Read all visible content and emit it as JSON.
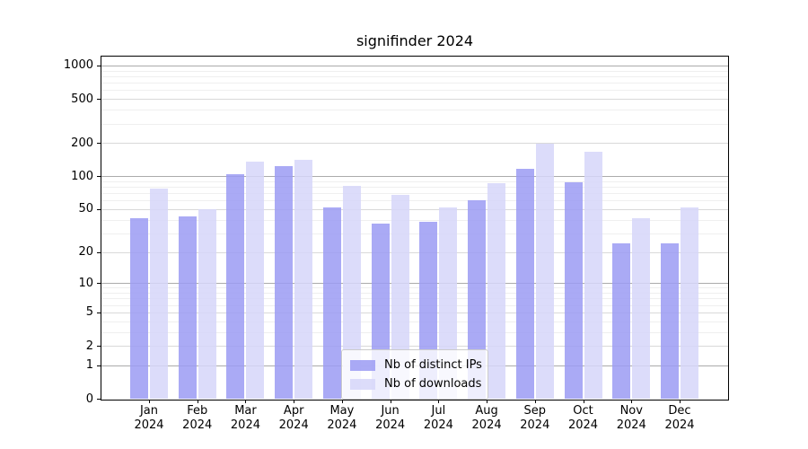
{
  "title": "signifinder 2024",
  "chart_data": {
    "type": "bar",
    "title": "signifinder 2024",
    "categories": [
      "Jan 2024",
      "Feb 2024",
      "Mar 2024",
      "Apr 2024",
      "May 2024",
      "Jun 2024",
      "Jul 2024",
      "Aug 2024",
      "Sep 2024",
      "Oct 2024",
      "Nov 2024",
      "Dec 2024"
    ],
    "series": [
      {
        "name": "Nb of distinct IPs",
        "color": "#9b9bf3",
        "values": [
          41,
          43,
          105,
          123,
          52,
          37,
          38,
          60,
          117,
          88,
          24,
          24
        ]
      },
      {
        "name": "Nb of downloads",
        "color": "#d6d6f9",
        "values": [
          77,
          50,
          135,
          141,
          81,
          67,
          52,
          86,
          197,
          166,
          41,
          52
        ]
      }
    ],
    "y_axis": {
      "scale": "log1p",
      "ylim": [
        0,
        1200
      ],
      "ticks": [
        0,
        1,
        2,
        5,
        10,
        20,
        50,
        100,
        200,
        500,
        1000
      ],
      "emphasized_ticks": [
        1,
        10,
        100,
        1000
      ],
      "minor_ticks": [
        3,
        4,
        6,
        7,
        8,
        9,
        30,
        40,
        60,
        70,
        80,
        90,
        300,
        400,
        600,
        700,
        800,
        900
      ]
    },
    "xlabel": "",
    "ylabel": "",
    "grid": true,
    "legend_position": "bottom-center"
  },
  "colors": {
    "bar_distinct_ips": "#9b9bf3",
    "bar_downloads": "#d6d6f9",
    "grid_major": "#ababab",
    "grid_mid": "#d9d9d9",
    "grid_minor": "#efefef",
    "frame": "#000000",
    "legend_border": "#cccccc"
  }
}
